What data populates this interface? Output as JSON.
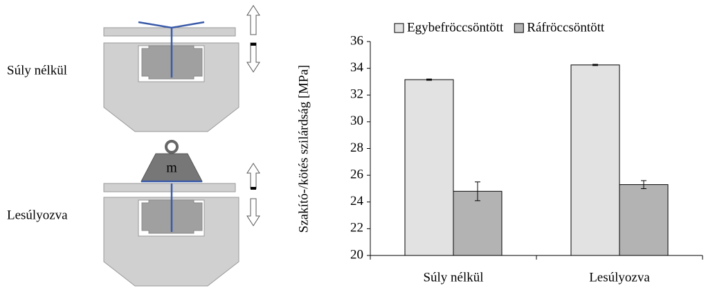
{
  "diagram": {
    "labels": [
      "Súly nélkül",
      "Lesúlyozva"
    ],
    "weight_label": "m"
  },
  "chart_data": {
    "type": "bar",
    "ylabel": "Szakító-/kötés szilárdság [MPa]",
    "categories": [
      "Súly nélkül",
      "Lesúlyozva"
    ],
    "series": [
      {
        "name": "Egybefröccsöntött",
        "color": "#e2e2e2",
        "values": [
          33.15,
          34.25
        ],
        "errors": [
          0.05,
          0.05
        ]
      },
      {
        "name": "Ráfröccsöntött",
        "color": "#b3b3b3",
        "values": [
          24.8,
          25.3
        ],
        "errors": [
          0.7,
          0.3
        ]
      }
    ],
    "ylim": [
      20,
      36
    ],
    "yticks": [
      20,
      22,
      24,
      26,
      28,
      30,
      32,
      34,
      36
    ],
    "grid": false,
    "legend": "top"
  }
}
